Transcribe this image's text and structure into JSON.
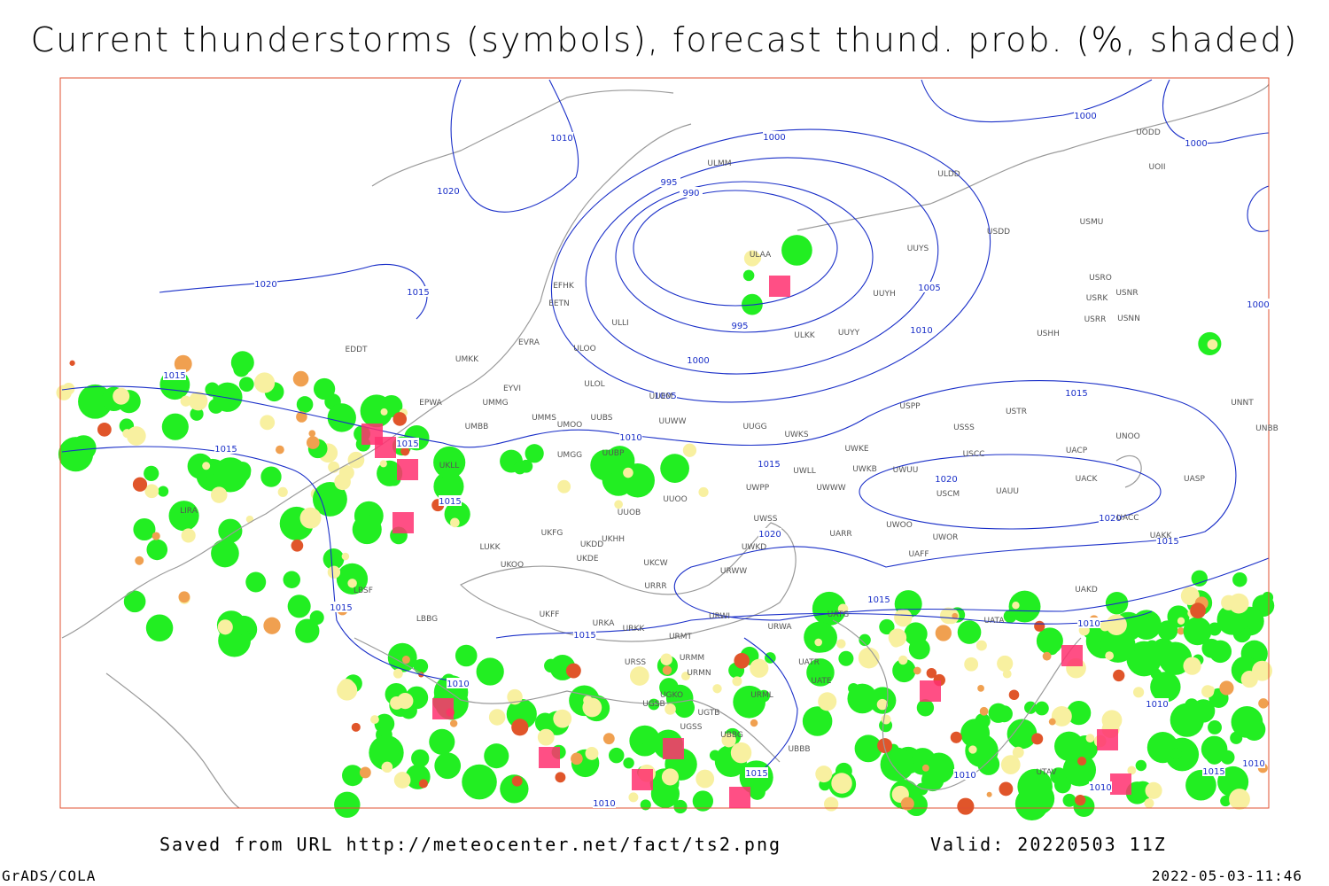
{
  "title": "Current thunderstorms (symbols), forecast thund. prob. (%, shaded)",
  "footer": {
    "saved": "Saved from URL http://meteocenter.net/fact/ts2.png",
    "valid": "Valid: 20220503 11Z",
    "credit": "GrADS/COLA",
    "timestamp": "2022-05-03-11:46"
  },
  "isobar_labels": [
    "1010",
    "1000",
    "1000",
    "1000",
    "995",
    "990",
    "1020",
    "1020",
    "1015",
    "1005",
    "995",
    "1010",
    "1000",
    "1005",
    "1015",
    "1015",
    "1015",
    "1015",
    "1010",
    "1015",
    "1015",
    "1020",
    "1020",
    "1020",
    "1015",
    "1015",
    "1015",
    "1015",
    "1010",
    "1010",
    "1010",
    "1010",
    "1015",
    "1010",
    "1010",
    "1015",
    "1010",
    "1000"
  ],
  "stations": [
    "ULMM",
    "ULDD",
    "UODD",
    "UOII",
    "USDD",
    "USMU",
    "ULAA",
    "UUYS",
    "EFHK",
    "EETN",
    "UUYH",
    "USRO",
    "USRK",
    "USNR",
    "USRR",
    "USNN",
    "ULLI",
    "EVRA",
    "ULOO",
    "ULKK",
    "UUYY",
    "USHH",
    "EDDT",
    "UMKK",
    "ULOL",
    "EYVI",
    "UUEM",
    "UMMG",
    "EPWA",
    "USPP",
    "USTR",
    "UMMS",
    "UMOO",
    "UUBS",
    "UUWW",
    "UUGG",
    "UWKS",
    "USSS",
    "UNOO",
    "UNBB",
    "UNNT",
    "UMBB",
    "UKLL",
    "UMGG",
    "UUBP",
    "UWKE",
    "USCC",
    "UACP",
    "UWKB",
    "UWUU",
    "UWLL",
    "UACK",
    "UASP",
    "UWPP",
    "UWWW",
    "USCM",
    "UAUU",
    "UUOO",
    "UUOB",
    "UWSS",
    "LIRA",
    "UWOO",
    "UWOR",
    "UACC",
    "UARR",
    "UAKK",
    "UKHH",
    "UKDD",
    "UKFG",
    "LUKK",
    "UKDE",
    "UWKD",
    "UAFF",
    "UKOO",
    "UKCW",
    "URWW",
    "LBSF",
    "URRR",
    "UAKD",
    "UKFF",
    "URWI",
    "UATG",
    "LBBG",
    "URKA",
    "URKK",
    "URWA",
    "UATA",
    "URMT",
    "URSS",
    "URMM",
    "UATE",
    "UATR",
    "URMN",
    "URML",
    "UGSB",
    "UGKO",
    "UGTB",
    "UBBB",
    "UGSS",
    "UBBG",
    "UTAV"
  ]
}
